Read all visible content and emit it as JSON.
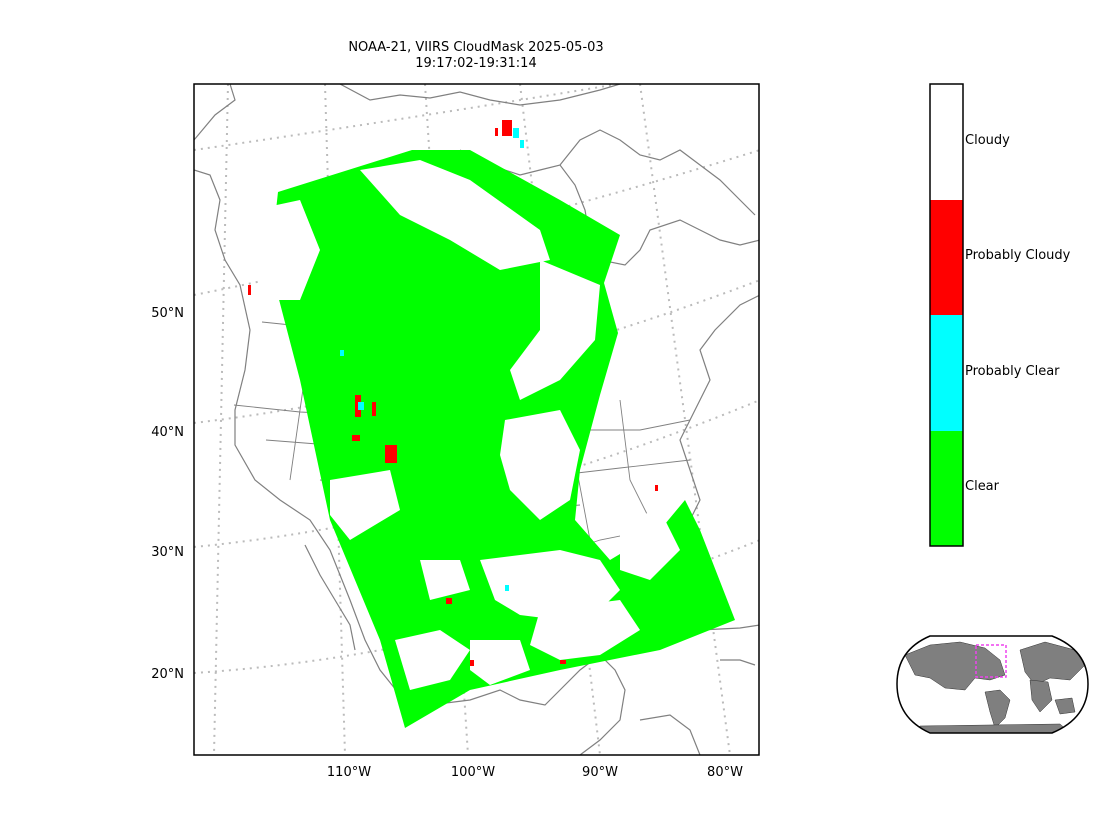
{
  "title": {
    "line1": "NOAA-21, VIIRS CloudMask 2025-05-03",
    "line2": "19:17:02-19:31:14"
  },
  "map": {
    "lat_labels": [
      "50°N",
      "40°N",
      "30°N",
      "20°N"
    ],
    "lon_labels": [
      "110°W",
      "100°W",
      "90°W",
      "80°W"
    ],
    "graticule_color": "#bbbbbb",
    "coastline_color": "#808080"
  },
  "legend": {
    "classes": [
      {
        "label": "Cloudy",
        "color": "#ffffff"
      },
      {
        "label": "Probably Cloudy",
        "color": "#ff0000"
      },
      {
        "label": "Probably Clear",
        "color": "#00ffff"
      },
      {
        "label": "Clear",
        "color": "#00ff00"
      }
    ]
  },
  "inset": {
    "land_color": "#7f7f7f",
    "box_color": "#ee44ee"
  }
}
